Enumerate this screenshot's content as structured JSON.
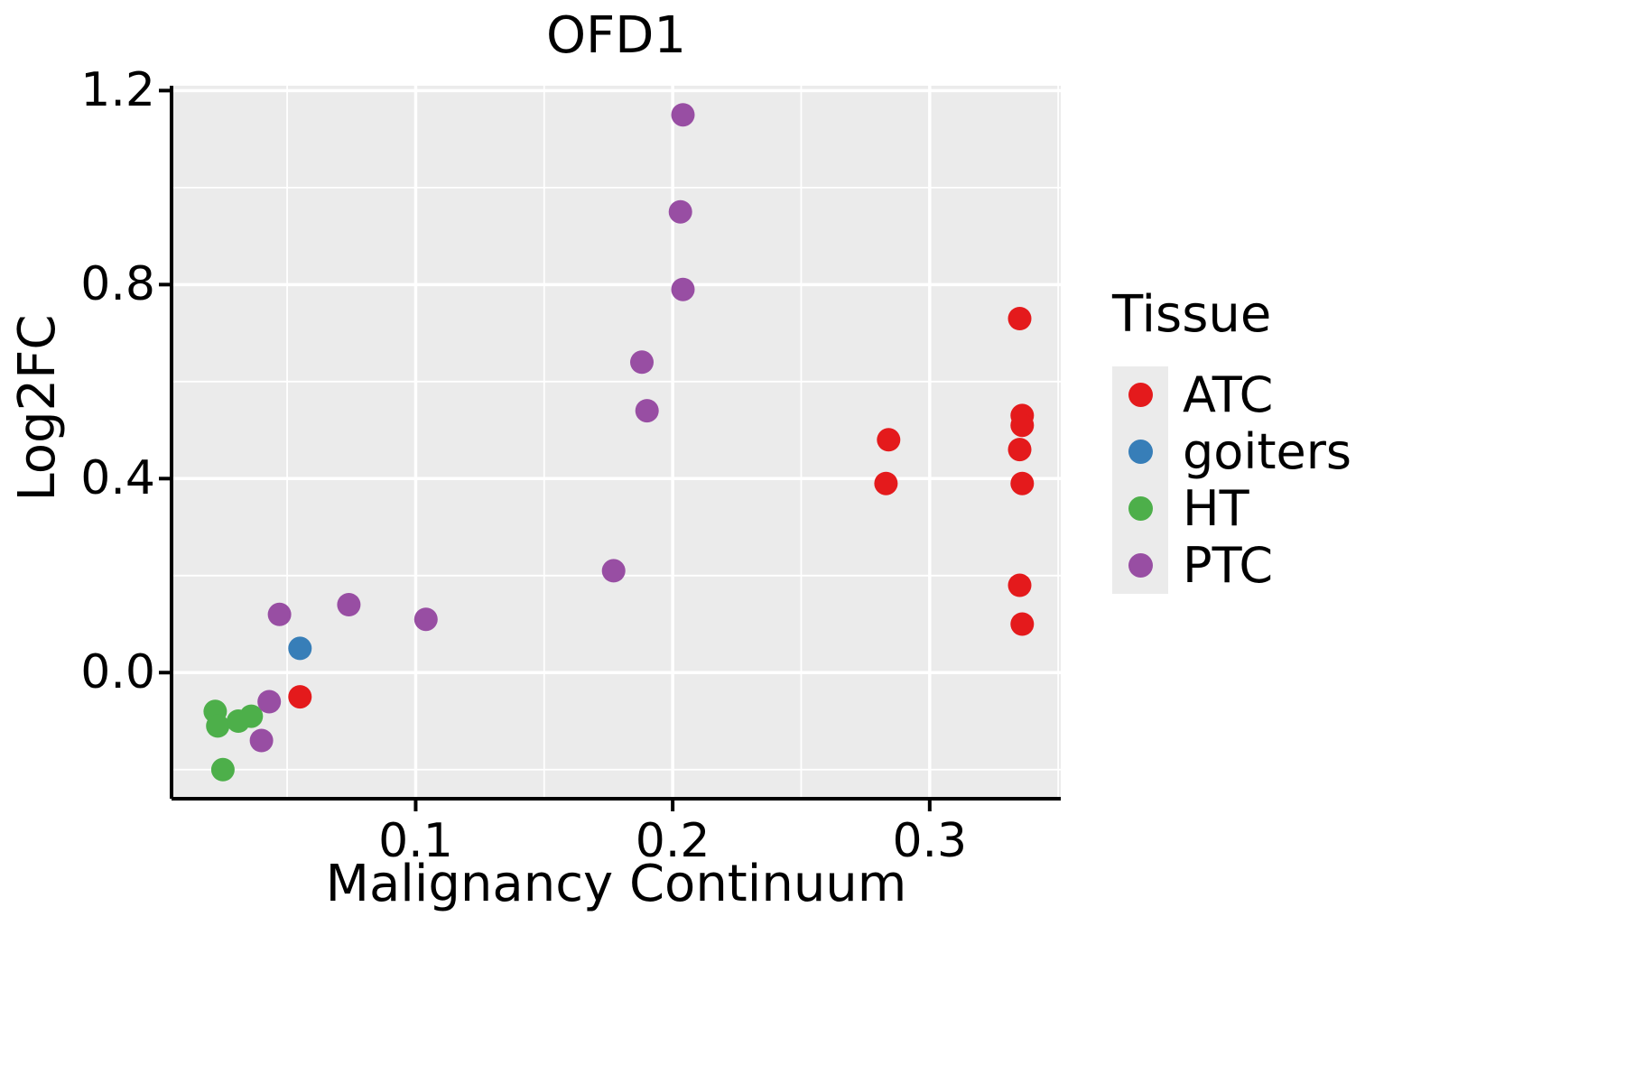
{
  "chart_data": {
    "type": "scatter",
    "title": "OFD1",
    "xlabel": "Malignancy Continuum",
    "ylabel": "Log2FC",
    "xlim": [
      0.005,
      0.351
    ],
    "ylim": [
      -0.26,
      1.21
    ],
    "xticks": [
      0.1,
      0.2,
      0.3
    ],
    "xtick_labels": [
      "0.1",
      "0.2",
      "0.3"
    ],
    "yticks": [
      0.0,
      0.4,
      0.8,
      1.2
    ],
    "ytick_labels": [
      "0.0",
      "0.4",
      "0.8",
      "1.2"
    ],
    "x_minor": [
      0.05,
      0.15,
      0.25,
      0.35
    ],
    "y_minor": [
      -0.2,
      0.2,
      0.6,
      1.0
    ],
    "grid": true,
    "panel_bg": "#EBEBEB",
    "grid_color": "#FFFFFF",
    "axis_color": "#000000",
    "point_radius": 13,
    "legend": {
      "title": "Tissue",
      "position": "right"
    },
    "series": [
      {
        "name": "ATC",
        "color": "#E41A1C",
        "points": [
          [
            0.055,
            -0.05
          ],
          [
            0.284,
            0.48
          ],
          [
            0.283,
            0.39
          ],
          [
            0.335,
            0.73
          ],
          [
            0.336,
            0.53
          ],
          [
            0.336,
            0.51
          ],
          [
            0.335,
            0.46
          ],
          [
            0.336,
            0.39
          ],
          [
            0.335,
            0.18
          ],
          [
            0.336,
            0.1
          ]
        ]
      },
      {
        "name": "goiters",
        "color": "#377EB8",
        "points": [
          [
            0.055,
            0.05
          ]
        ]
      },
      {
        "name": "HT",
        "color": "#4DAF4A",
        "points": [
          [
            0.022,
            -0.08
          ],
          [
            0.023,
            -0.11
          ],
          [
            0.031,
            -0.1
          ],
          [
            0.036,
            -0.09
          ],
          [
            0.025,
            -0.2
          ]
        ]
      },
      {
        "name": "PTC",
        "color": "#984EA3",
        "points": [
          [
            0.204,
            1.15
          ],
          [
            0.203,
            0.95
          ],
          [
            0.204,
            0.79
          ],
          [
            0.188,
            0.64
          ],
          [
            0.19,
            0.54
          ],
          [
            0.177,
            0.21
          ],
          [
            0.104,
            0.11
          ],
          [
            0.074,
            0.14
          ],
          [
            0.047,
            0.12
          ],
          [
            0.043,
            -0.06
          ],
          [
            0.04,
            -0.14
          ]
        ]
      }
    ]
  }
}
